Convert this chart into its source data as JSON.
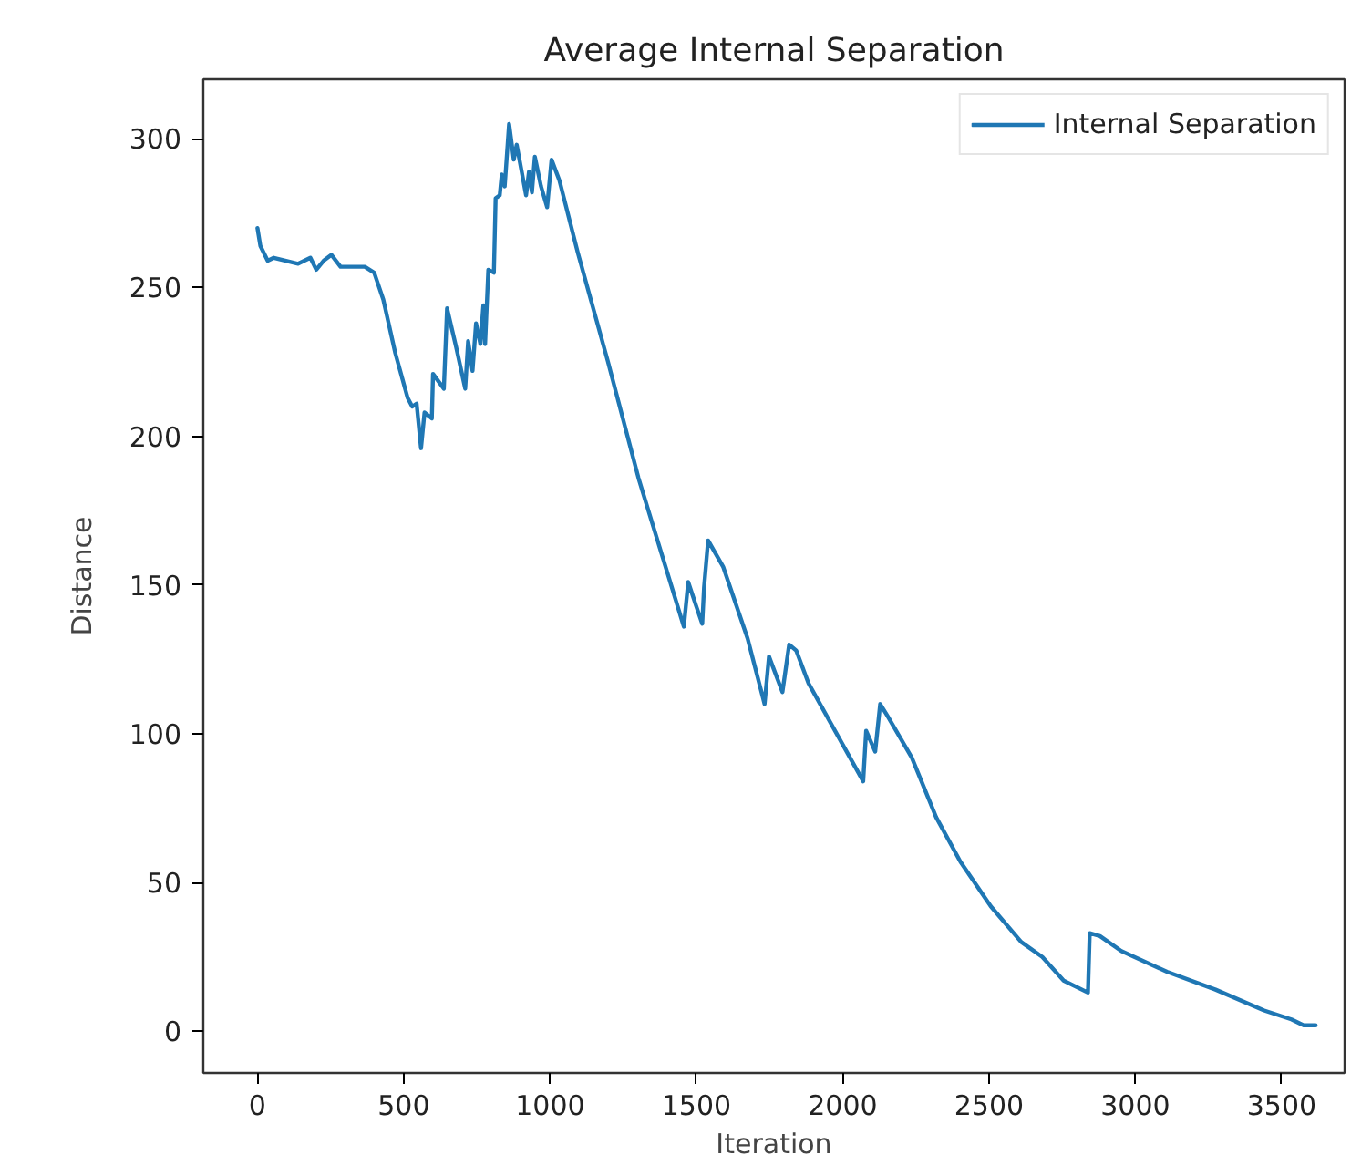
{
  "chart_data": {
    "type": "line",
    "title": "Average Internal Separation",
    "xlabel": "Iteration",
    "ylabel": "Distance",
    "x": [
      0,
      10,
      35,
      56,
      139,
      181,
      201,
      226,
      253,
      284,
      367,
      399,
      430,
      471,
      513,
      529,
      544,
      559,
      571,
      596,
      600,
      637,
      648,
      679,
      710,
      720,
      735,
      747,
      762,
      772,
      778,
      789,
      808,
      814,
      828,
      835,
      845,
      860,
      876,
      886,
      918,
      928,
      938,
      948,
      969,
      990,
      1005,
      1032,
      1094,
      1198,
      1302,
      1364,
      1457,
      1472,
      1499,
      1520,
      1526,
      1540,
      1592,
      1675,
      1733,
      1748,
      1794,
      1817,
      1841,
      1883,
      2070,
      2080,
      2111,
      2128,
      2153,
      2236,
      2319,
      2402,
      2506,
      2610,
      2682,
      2755,
      2838,
      2844,
      2879,
      2952,
      3108,
      3274,
      3440,
      3533,
      3575,
      3616
    ],
    "series": [
      {
        "name": "Internal Separation",
        "color": "#1f77b4",
        "values": [
          270,
          264,
          259,
          260,
          258,
          260,
          256,
          259,
          261,
          257,
          257,
          255,
          246,
          228,
          213,
          210,
          211,
          196,
          208,
          206,
          221,
          216,
          243,
          230,
          216,
          232,
          222,
          238,
          231,
          244,
          231,
          256,
          255,
          280,
          281,
          288,
          284,
          305,
          293,
          298,
          281,
          289,
          282,
          294,
          284,
          277,
          293,
          286,
          262,
          225,
          186,
          166,
          136,
          151,
          143,
          137,
          149,
          165,
          156,
          132,
          110,
          126,
          114,
          130,
          128,
          117,
          84,
          101,
          94,
          110,
          106,
          92,
          72,
          57,
          42,
          30,
          25,
          17,
          13,
          33,
          32,
          27,
          20,
          14,
          7,
          4,
          2,
          2
        ]
      }
    ],
    "xlim": [
      -185,
      3715
    ],
    "ylim": [
      -14,
      320
    ],
    "xticks": [
      0,
      500,
      1000,
      1500,
      2000,
      2500,
      3000,
      3500
    ],
    "yticks": [
      0,
      50,
      100,
      150,
      200,
      250,
      300
    ],
    "legend": "top right",
    "line_style": "solid"
  }
}
